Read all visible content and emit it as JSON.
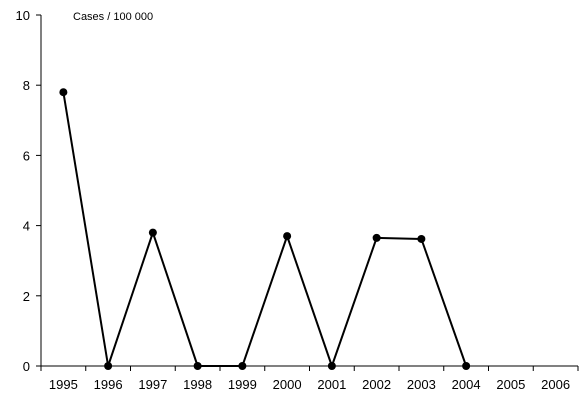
{
  "chart_data": {
    "type": "line",
    "title": "",
    "xlabel": "",
    "ylabel": "Cases / 100 000",
    "x": [
      "1995",
      "1996",
      "1997",
      "1998",
      "1999",
      "2000",
      "2001",
      "2002",
      "2003",
      "2004",
      "2005",
      "2006"
    ],
    "series": [
      {
        "values": [
          7.8,
          0,
          3.8,
          0,
          0,
          3.7,
          0,
          3.65,
          3.62,
          0,
          null,
          null
        ]
      }
    ],
    "ylim": [
      0,
      10
    ],
    "yticks": [
      0,
      2,
      4,
      6,
      8,
      10
    ],
    "grid": false,
    "legend": "none",
    "line_color": "#000000",
    "marker_color": "#000000"
  }
}
